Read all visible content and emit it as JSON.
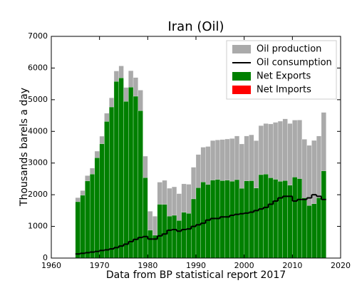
{
  "chart_data": {
    "type": "bar",
    "title": "Iran (Oil)",
    "xlabel": "Data from BP statistical report 2017",
    "ylabel": "Thousands barels a day",
    "x": [
      1965,
      1966,
      1967,
      1968,
      1969,
      1970,
      1971,
      1972,
      1973,
      1974,
      1975,
      1976,
      1977,
      1978,
      1979,
      1980,
      1981,
      1982,
      1983,
      1984,
      1985,
      1986,
      1987,
      1988,
      1989,
      1990,
      1991,
      1992,
      1993,
      1994,
      1995,
      1996,
      1997,
      1998,
      1999,
      2000,
      2001,
      2002,
      2003,
      2004,
      2005,
      2006,
      2007,
      2008,
      2009,
      2010,
      2011,
      2012,
      2013,
      2014,
      2015,
      2016
    ],
    "series": [
      {
        "name": "Oil production",
        "color": "#aaaaaa",
        "values": [
          1908,
          2132,
          2603,
          2840,
          3376,
          3848,
          4572,
          5060,
          5907,
          6067,
          5387,
          5915,
          5699,
          5302,
          3218,
          1479,
          1321,
          2397,
          2454,
          2205,
          2250,
          2035,
          2343,
          2330,
          2868,
          3270,
          3500,
          3523,
          3712,
          3730,
          3744,
          3759,
          3776,
          3855,
          3603,
          3855,
          3892,
          3709,
          4183,
          4248,
          4234,
          4286,
          4322,
          4396,
          4249,
          4356,
          4358,
          3751,
          3558,
          3714,
          3853,
          4600
        ]
      },
      {
        "name": "Oil consumption",
        "color": "#000000",
        "values": [
          130,
          150,
          170,
          190,
          210,
          240,
          260,
          290,
          330,
          380,
          440,
          520,
          590,
          650,
          680,
          600,
          600,
          700,
          760,
          880,
          900,
          850,
          900,
          920,
          1000,
          1050,
          1100,
          1200,
          1250,
          1250,
          1300,
          1300,
          1350,
          1380,
          1400,
          1420,
          1450,
          1500,
          1550,
          1600,
          1700,
          1800,
          1900,
          1950,
          1950,
          1800,
          1850,
          1850,
          1900,
          2000,
          1950,
          1850
        ]
      },
      {
        "name": "Net Exports",
        "color": "#008000",
        "values": [
          1778,
          1982,
          2433,
          2650,
          3166,
          3608,
          4312,
          4770,
          5577,
          5687,
          4947,
          5395,
          5109,
          4652,
          2538,
          879,
          721,
          1697,
          1694,
          1325,
          1350,
          1185,
          1443,
          1410,
          1868,
          2220,
          2400,
          2323,
          2462,
          2480,
          2444,
          2459,
          2426,
          2475,
          2203,
          2435,
          2442,
          2209,
          2633,
          2648,
          2534,
          2486,
          2422,
          2446,
          2299,
          2556,
          2508,
          1901,
          1658,
          1714,
          1903,
          2750
        ]
      },
      {
        "name": "Net Imports",
        "color": "#ff0000",
        "values": [
          0,
          0,
          0,
          0,
          0,
          0,
          0,
          0,
          0,
          0,
          0,
          0,
          0,
          0,
          0,
          0,
          0,
          0,
          0,
          0,
          0,
          0,
          0,
          0,
          0,
          0,
          0,
          0,
          0,
          0,
          0,
          0,
          0,
          0,
          0,
          0,
          0,
          0,
          0,
          0,
          0,
          0,
          0,
          0,
          0,
          0,
          0,
          0,
          0,
          0,
          0,
          0
        ]
      }
    ],
    "xlim": [
      1960,
      2020
    ],
    "xticks": [
      1960,
      1970,
      1980,
      1990,
      2000,
      2010,
      2020
    ],
    "ylim": [
      0,
      7000
    ],
    "yticks": [
      0,
      1000,
      2000,
      3000,
      4000,
      5000,
      6000,
      7000
    ],
    "legend": "upper right",
    "grid": false
  }
}
